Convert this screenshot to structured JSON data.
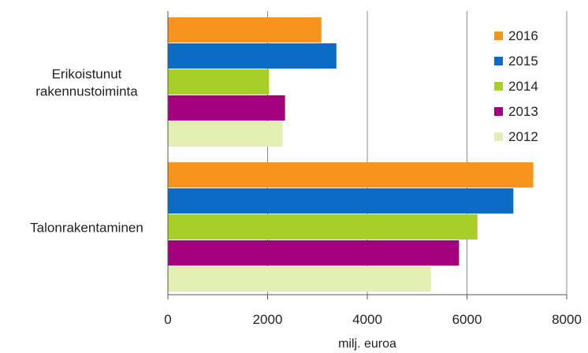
{
  "chart_data": {
    "type": "bar",
    "orientation": "horizontal",
    "title": "",
    "xlabel": "milj. euroa",
    "ylabel": "",
    "xlim": [
      0,
      8000
    ],
    "xticks": [
      "0",
      "2000",
      "4000",
      "6000",
      "8000"
    ],
    "categories": [
      "Erikoistunut rakennustoiminta",
      "Talonrakentaminen"
    ],
    "category_label_lines": [
      [
        "Erikoistunut",
        "rakennustoiminta"
      ],
      [
        "Talonrakentaminen"
      ]
    ],
    "series": [
      {
        "name": "2016",
        "color": "#F7941D",
        "values": [
          3080,
          7330
        ]
      },
      {
        "name": "2015",
        "color": "#0A6CC5",
        "values": [
          3380,
          6930
        ]
      },
      {
        "name": "2014",
        "color": "#A8CF28",
        "values": [
          2030,
          6210
        ]
      },
      {
        "name": "2013",
        "color": "#A3007D",
        "values": [
          2350,
          5840
        ]
      },
      {
        "name": "2012",
        "color": "#E3EFB2",
        "values": [
          2300,
          5280
        ]
      }
    ],
    "grid": true,
    "legend_position": "top-right"
  }
}
